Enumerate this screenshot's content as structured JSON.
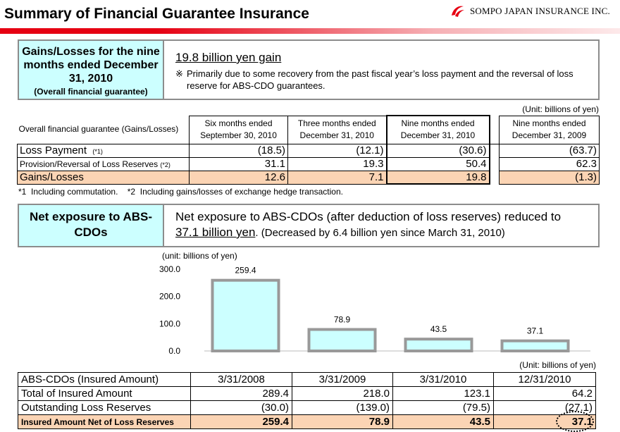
{
  "header": {
    "title": "Summary of Financial Guarantee Insurance",
    "logo_text": "SOMPO JAPAN INSURANCE INC."
  },
  "section1": {
    "label_main": "Gains/Losses for the nine months ended December 31, 2010",
    "label_sub": "(Overall financial guarantee)",
    "headline": "19.8 billion yen gain",
    "note_mark": "※",
    "note": "Primarily due to some recovery from the past fiscal year’s loss payment and the reversal of loss reserve for ABS-CDO guarantees."
  },
  "table1": {
    "unit": "(Unit: billions of yen)",
    "corner": "Overall financial guarantee (Gains/Losses)",
    "columns": [
      "Six months ended September 30, 2010",
      "Three months ended December 31, 2010",
      "Nine months ended December 31, 2010",
      "Nine months ended December 31, 2009"
    ],
    "rows": [
      {
        "label": "Loss Payment",
        "note": "(*1)",
        "values": [
          "(18.5)",
          "(12.1)",
          "(30.6)",
          "(63.7)"
        ]
      },
      {
        "label": "Provision/Reversal of Loss Reserves",
        "note": "(*2)",
        "values": [
          "31.1",
          "19.3",
          "50.4",
          "62.3"
        ]
      },
      {
        "label": "Gains/Losses",
        "note": "",
        "values": [
          "12.6",
          "7.1",
          "19.8",
          "(1.3)"
        ]
      }
    ],
    "footnote": "*1  Including commutation.    *2  Including gains/losses of exchange hedge transaction."
  },
  "section2": {
    "label": "Net exposure to ABS-CDOs",
    "text1": "Net exposure to ABS-CDOs (after deduction of loss reserves) reduced to",
    "text_amount": "37.1 billion yen",
    "text2": ". (Decreased by 6.4 billion yen since March 31, 2010)"
  },
  "chart_data": {
    "type": "bar",
    "unit_label": "(unit: billions of yen)",
    "categories": [
      "3/31/2008",
      "3/31/2009",
      "3/31/2010",
      "12/31/2010"
    ],
    "values": [
      259.4,
      78.9,
      43.5,
      37.1
    ],
    "value_labels": [
      "259.4",
      "78.9",
      "43.5",
      "37.1"
    ],
    "ylim": [
      0,
      300
    ],
    "yticks": [
      0,
      100,
      200,
      300
    ],
    "ytick_labels": [
      "0.0",
      "100.0",
      "200.0",
      "300.0"
    ],
    "bar_color": "#ccffff",
    "bar_border": "#999999"
  },
  "table3": {
    "unit": "(Unit: billions of yen)",
    "corner": "ABS-CDOs (Insured Amount)",
    "columns": [
      "3/31/2008",
      "3/31/2009",
      "3/31/2010",
      "12/31/2010"
    ],
    "rows": [
      {
        "label": "Total of Insured Amount",
        "values": [
          "289.4",
          "218.0",
          "123.1",
          "64.2"
        ]
      },
      {
        "label": "Outstanding Loss Reserves",
        "values": [
          "(30.0)",
          "(139.0)",
          "(79.5)",
          "(27.1)"
        ]
      },
      {
        "label": "Insured Amount Net of Loss Reserves",
        "values": [
          "259.4",
          "78.9",
          "43.5",
          "37.1"
        ]
      }
    ]
  },
  "colors": {
    "accent_red": "#e60012",
    "highlight_orange": "#fbd4b4",
    "label_cyan": "#ccffff"
  }
}
